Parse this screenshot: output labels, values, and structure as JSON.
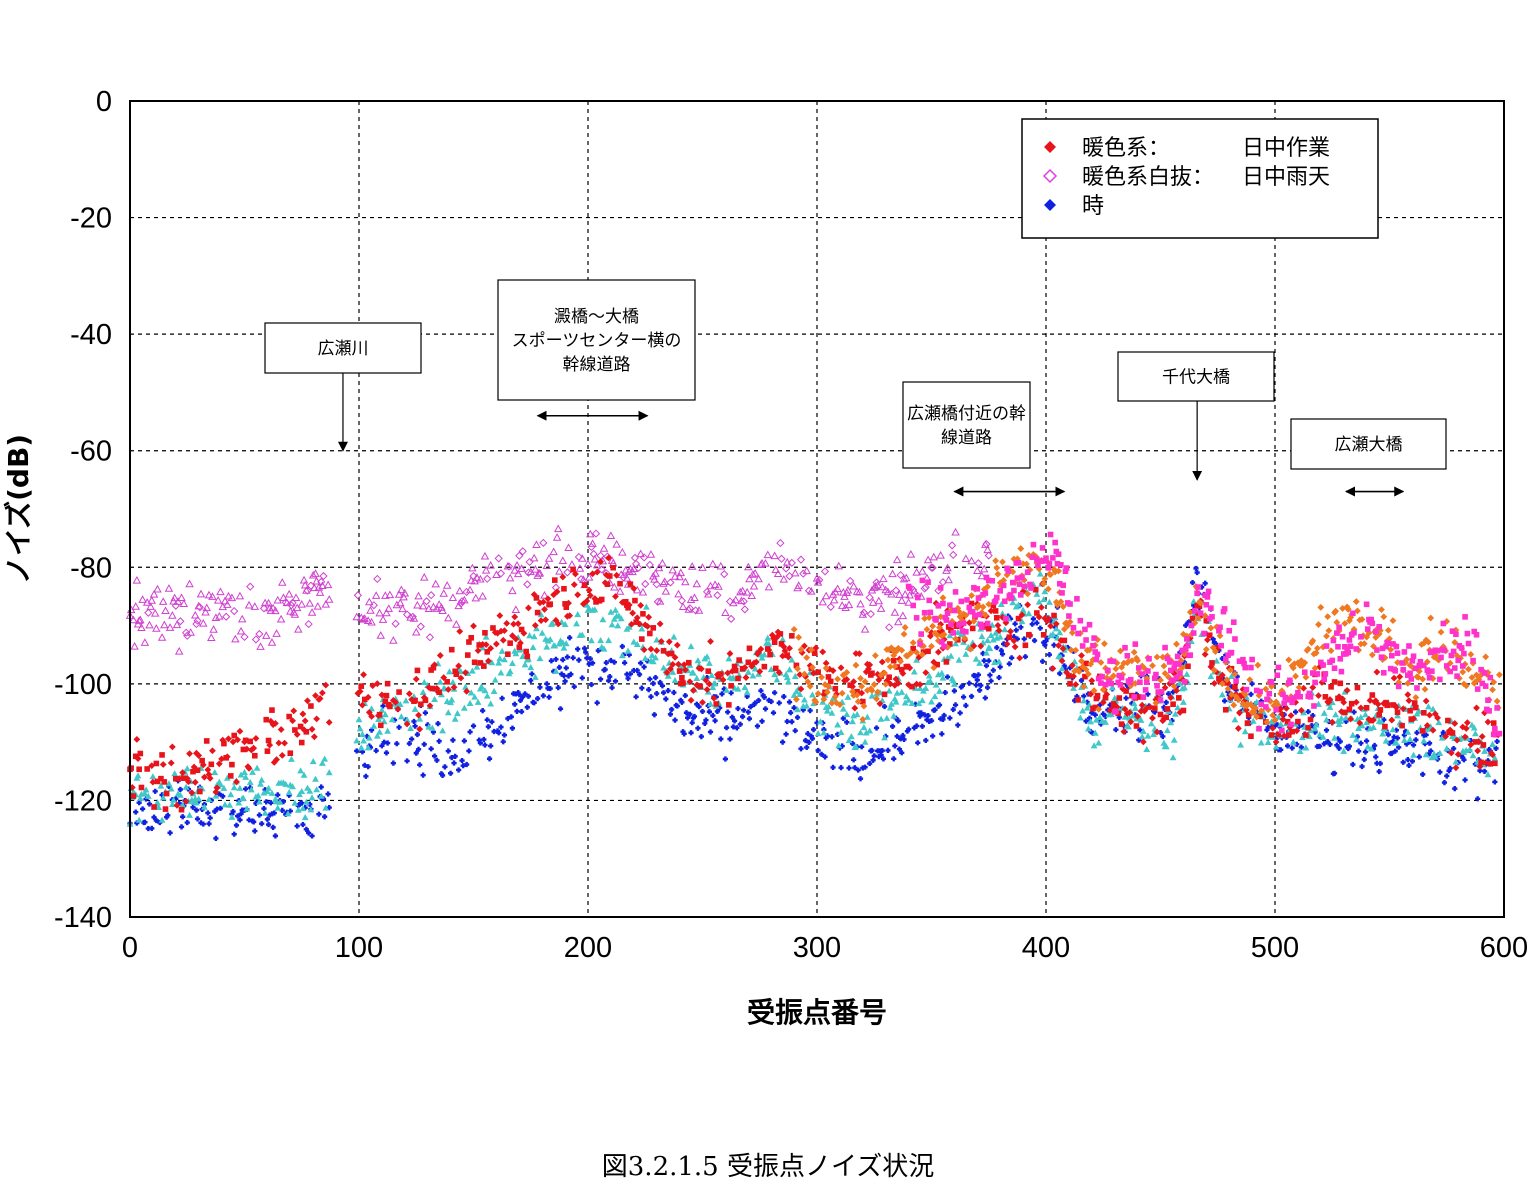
{
  "chart_data": {
    "type": "scatter",
    "xlabel": "受振点番号",
    "ylabel": "ノイズ(dB)",
    "xlim": [
      0,
      600
    ],
    "ylim": [
      -140,
      0
    ],
    "xticks": [
      "0",
      "100",
      "200",
      "300",
      "400",
      "500",
      "600"
    ],
    "yticks": [
      "0",
      "-20",
      "-40",
      "-60",
      "-80",
      "-100",
      "-120",
      "-140"
    ],
    "grid": "dashed",
    "caption": "図3.2.1.5 受振点ノイズ状況",
    "legend": {
      "placement": "top-right",
      "entries": [
        {
          "marker": "filled-diamond",
          "color": "#e8141c",
          "label": "暖色系：",
          "value": "日中作業"
        },
        {
          "marker": "open-diamond",
          "color": "#e040e0",
          "label": "暖色系白抜：",
          "value": "日中雨天"
        },
        {
          "marker": "filled-diamond",
          "color": "#1020e0",
          "label": "時",
          "value": ""
        }
      ]
    },
    "annotations": [
      {
        "lines": [
          "広瀬川"
        ],
        "arrow": "down",
        "x": 93,
        "y": -60
      },
      {
        "lines": [
          "澱橋～大橋",
          "スポーツセンター横の",
          "幹線道路"
        ],
        "arrow": "span",
        "x_from": 178,
        "x_to": 226,
        "y": -54
      },
      {
        "lines": [
          "広瀬橋付近の幹",
          "線道路"
        ],
        "arrow": "span",
        "x_from": 360,
        "x_to": 408,
        "y": -67
      },
      {
        "lines": [
          "千代大橋"
        ],
        "arrow": "down",
        "x": 466,
        "y": -65
      },
      {
        "lines": [
          "広瀬大橋"
        ],
        "arrow": "span",
        "x_from": 531,
        "x_to": 556,
        "y": -67
      }
    ],
    "series": [
      {
        "key": "red",
        "color": "#e8141c",
        "marker": "diamond-square",
        "profile": [
          [
            0,
            -116
          ],
          [
            10,
            -114
          ],
          [
            20,
            -118
          ],
          [
            30,
            -115
          ],
          [
            40,
            -112
          ],
          [
            50,
            -112
          ],
          [
            60,
            -108
          ],
          [
            70,
            -110
          ],
          [
            85,
            -103
          ],
          [
            100,
            -102
          ],
          [
            120,
            -103
          ],
          [
            140,
            -98
          ],
          [
            160,
            -93
          ],
          [
            180,
            -87
          ],
          [
            200,
            -82
          ],
          [
            220,
            -86
          ],
          [
            240,
            -98
          ],
          [
            260,
            -100
          ],
          [
            280,
            -93
          ],
          [
            300,
            -98
          ],
          [
            320,
            -100
          ],
          [
            340,
            -97
          ],
          [
            360,
            -91
          ],
          [
            380,
            -90
          ],
          [
            400,
            -88
          ],
          [
            410,
            -97
          ],
          [
            430,
            -103
          ],
          [
            450,
            -104
          ],
          [
            460,
            -100
          ],
          [
            466,
            -86
          ],
          [
            475,
            -97
          ],
          [
            490,
            -106
          ],
          [
            500,
            -107
          ],
          [
            520,
            -102
          ],
          [
            540,
            -103
          ],
          [
            560,
            -105
          ],
          [
            580,
            -108
          ],
          [
            598,
            -110
          ]
        ]
      },
      {
        "key": "orange",
        "color": "#f07820",
        "marker": "diamond",
        "profile": [
          [
            290,
            -97
          ],
          [
            300,
            -99
          ],
          [
            320,
            -101
          ],
          [
            340,
            -93
          ],
          [
            360,
            -90
          ],
          [
            380,
            -82
          ],
          [
            395,
            -80
          ],
          [
            405,
            -83
          ],
          [
            415,
            -98
          ],
          [
            430,
            -97
          ],
          [
            450,
            -99
          ],
          [
            460,
            -96
          ],
          [
            466,
            -86
          ],
          [
            475,
            -96
          ],
          [
            490,
            -103
          ],
          [
            500,
            -103
          ],
          [
            515,
            -95
          ],
          [
            530,
            -88
          ],
          [
            545,
            -92
          ],
          [
            560,
            -97
          ],
          [
            575,
            -93
          ],
          [
            590,
            -98
          ],
          [
            598,
            -100
          ]
        ]
      },
      {
        "key": "pink",
        "color": "#ff33cc",
        "marker": "square",
        "profile": [
          [
            340,
            -87
          ],
          [
            360,
            -89
          ],
          [
            380,
            -84
          ],
          [
            395,
            -80
          ],
          [
            405,
            -78
          ],
          [
            410,
            -86
          ],
          [
            425,
            -99
          ],
          [
            440,
            -98
          ],
          [
            460,
            -98
          ],
          [
            466,
            -86
          ],
          [
            480,
            -92
          ],
          [
            495,
            -104
          ],
          [
            510,
            -102
          ],
          [
            525,
            -95
          ],
          [
            540,
            -90
          ],
          [
            555,
            -98
          ],
          [
            570,
            -95
          ],
          [
            585,
            -92
          ],
          [
            598,
            -108
          ]
        ]
      },
      {
        "key": "magenta-open",
        "color": "#d040d0",
        "marker": "open-triangle",
        "profile": [
          [
            0,
            -88
          ],
          [
            20,
            -88
          ],
          [
            40,
            -86
          ],
          [
            60,
            -88
          ],
          [
            85,
            -85
          ],
          [
            100,
            -88
          ],
          [
            120,
            -88
          ],
          [
            140,
            -85
          ],
          [
            160,
            -82
          ],
          [
            180,
            -80
          ],
          [
            200,
            -79
          ],
          [
            220,
            -80
          ],
          [
            240,
            -84
          ],
          [
            260,
            -86
          ],
          [
            280,
            -80
          ],
          [
            300,
            -82
          ],
          [
            320,
            -86
          ],
          [
            340,
            -84
          ],
          [
            360,
            -80
          ],
          [
            375,
            -78
          ]
        ]
      },
      {
        "key": "cyan",
        "color": "#40c8c8",
        "marker": "triangle",
        "profile": [
          [
            0,
            -119
          ],
          [
            20,
            -118
          ],
          [
            40,
            -119
          ],
          [
            60,
            -118
          ],
          [
            85,
            -117
          ],
          [
            100,
            -108
          ],
          [
            120,
            -104
          ],
          [
            140,
            -102
          ],
          [
            160,
            -97
          ],
          [
            180,
            -94
          ],
          [
            200,
            -88
          ],
          [
            220,
            -92
          ],
          [
            240,
            -97
          ],
          [
            260,
            -100
          ],
          [
            280,
            -95
          ],
          [
            300,
            -104
          ],
          [
            320,
            -106
          ],
          [
            340,
            -102
          ],
          [
            360,
            -96
          ],
          [
            380,
            -90
          ],
          [
            395,
            -84
          ],
          [
            405,
            -91
          ],
          [
            420,
            -107
          ],
          [
            440,
            -105
          ],
          [
            455,
            -107
          ],
          [
            466,
            -88
          ],
          [
            480,
            -104
          ],
          [
            500,
            -108
          ],
          [
            520,
            -107
          ],
          [
            540,
            -107
          ],
          [
            560,
            -108
          ],
          [
            580,
            -110
          ],
          [
            598,
            -113
          ]
        ]
      },
      {
        "key": "blue",
        "color": "#1020e0",
        "marker": "cross",
        "profile": [
          [
            0,
            -121
          ],
          [
            20,
            -122
          ],
          [
            40,
            -121
          ],
          [
            60,
            -122
          ],
          [
            80,
            -122
          ],
          [
            100,
            -110
          ],
          [
            120,
            -109
          ],
          [
            140,
            -112
          ],
          [
            160,
            -107
          ],
          [
            180,
            -100
          ],
          [
            200,
            -96
          ],
          [
            220,
            -98
          ],
          [
            240,
            -105
          ],
          [
            260,
            -106
          ],
          [
            280,
            -104
          ],
          [
            300,
            -110
          ],
          [
            320,
            -112
          ],
          [
            340,
            -108
          ],
          [
            360,
            -104
          ],
          [
            380,
            -95
          ],
          [
            395,
            -89
          ],
          [
            405,
            -93
          ],
          [
            420,
            -104
          ],
          [
            440,
            -104
          ],
          [
            455,
            -104
          ],
          [
            466,
            -82
          ],
          [
            480,
            -100
          ],
          [
            500,
            -108
          ],
          [
            520,
            -109
          ],
          [
            540,
            -110
          ],
          [
            560,
            -111
          ],
          [
            580,
            -113
          ],
          [
            598,
            -116
          ]
        ]
      }
    ]
  }
}
